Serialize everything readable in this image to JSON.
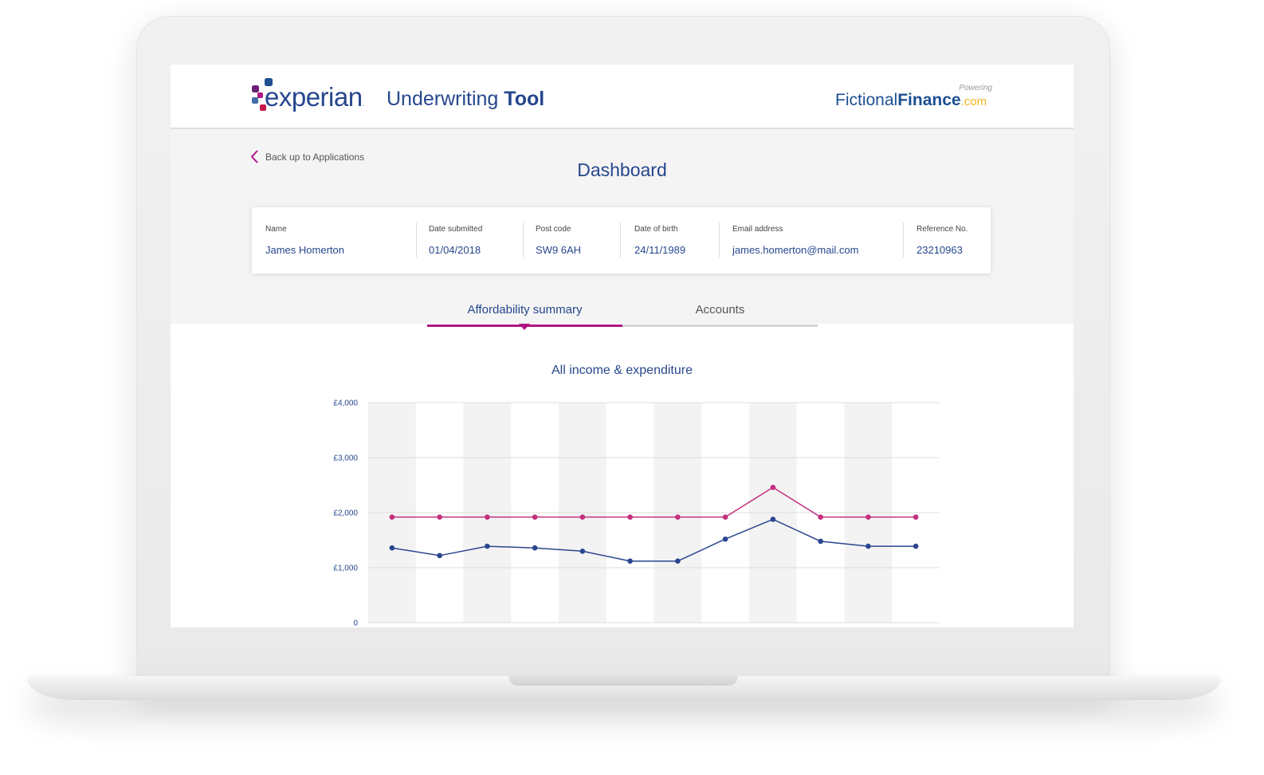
{
  "app": {
    "brand": "experian",
    "title_regular": "Underwriting",
    "title_bold": "Tool",
    "powering_label": "Powering",
    "partner": {
      "part1": "Fictional",
      "part2": "Finance",
      "part3": ".com"
    }
  },
  "nav": {
    "back_label": "Back up to Applications"
  },
  "page": {
    "title": "Dashboard"
  },
  "applicant": {
    "fields": [
      {
        "label": "Name",
        "value": "James Homerton"
      },
      {
        "label": "Date submitted",
        "value": "01/04/2018"
      },
      {
        "label": "Post code",
        "value": "SW9 6AH"
      },
      {
        "label": "Date of birth",
        "value": "24/11/1989"
      },
      {
        "label": "Email address",
        "value": "james.homerton@mail.com"
      },
      {
        "label": "Reference No.",
        "value": "23210963"
      }
    ]
  },
  "tabs": [
    {
      "label": "Affordability summary",
      "active": true
    },
    {
      "label": "Accounts",
      "active": false
    }
  ],
  "colors": {
    "brand_navy": "#26478d",
    "brand_magenta": "#af1685",
    "income_series": "#c2307e",
    "expenditure_series": "#2b4590",
    "partner_accent": "#f5b21e"
  },
  "chart_data": {
    "type": "line",
    "title": "All income & expenditure",
    "xlabel": "",
    "ylabel": "",
    "ylim": [
      0,
      4000
    ],
    "yticks": [
      0,
      1000,
      2000,
      3000,
      4000
    ],
    "ytick_labels": [
      "0",
      "£1,000",
      "£2,000",
      "£3,000",
      "£4,000"
    ],
    "x": [
      1,
      2,
      3,
      4,
      5,
      6,
      7,
      8,
      9,
      10,
      11,
      12
    ],
    "grid": true,
    "series": [
      {
        "values": [
          1920,
          1920,
          1920,
          1920,
          1920,
          1920,
          1920,
          1920,
          2460,
          1920,
          1920,
          1920
        ]
      },
      {
        "values": [
          1360,
          1220,
          1390,
          1360,
          1300,
          1120,
          1120,
          1520,
          1880,
          1480,
          1390,
          1390
        ]
      }
    ]
  }
}
